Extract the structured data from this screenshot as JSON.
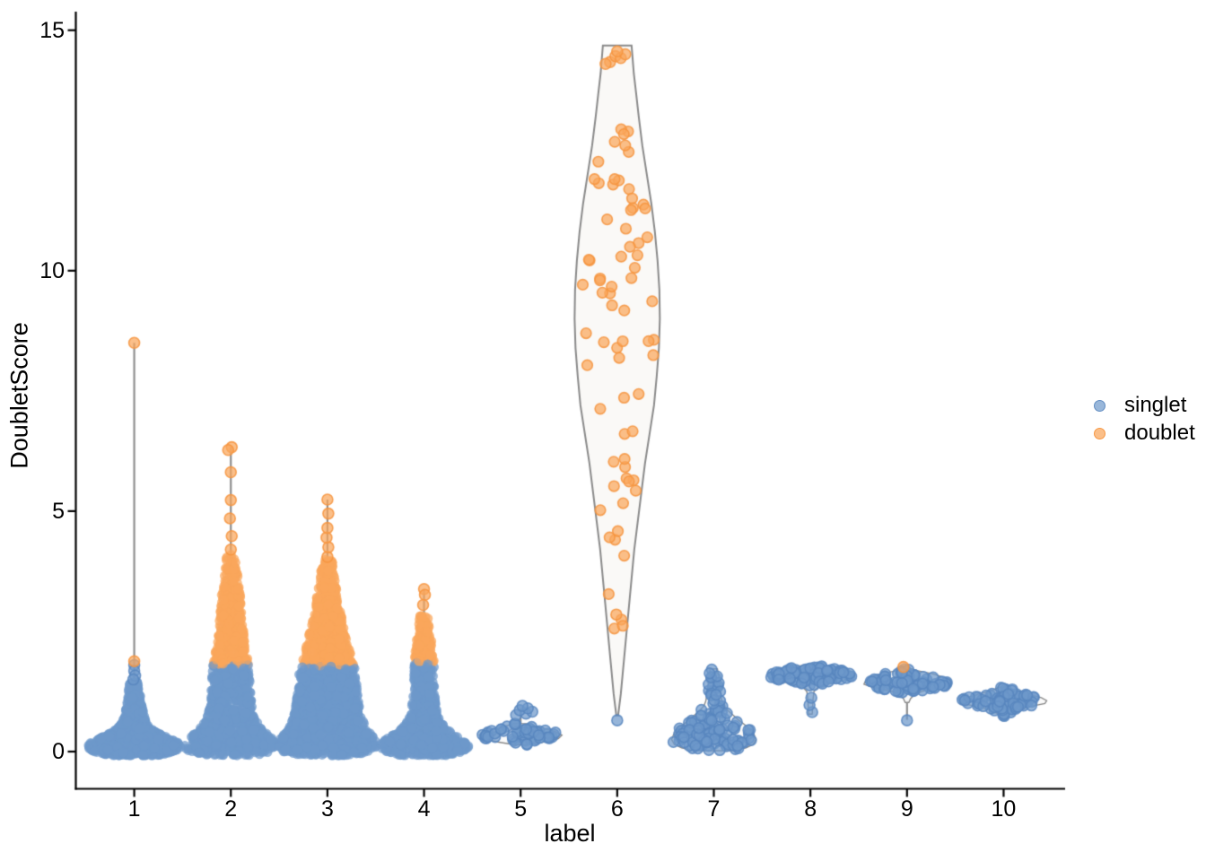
{
  "chart_data": {
    "type": "violin-scatter",
    "title": "",
    "xlabel": "label",
    "ylabel": "DoubletScore",
    "x_categories": [
      "1",
      "2",
      "3",
      "4",
      "5",
      "6",
      "7",
      "8",
      "9",
      "10"
    ],
    "y_ticks": [
      0,
      5,
      10,
      15
    ],
    "ylim": [
      -0.8,
      15.4
    ],
    "grid": false,
    "legend": {
      "position": "right",
      "entries": [
        {
          "label": "singlet",
          "fill": "rgba(110,152,202,0.70)",
          "stroke": "rgba(93,138,192,0.9)"
        },
        {
          "label": "doublet",
          "fill": "rgba(250,166,92,0.72)",
          "stroke": "rgba(246,148,62,0.9)"
        }
      ]
    },
    "point_colors": {
      "singlet_fill": "rgba(110,152,202,0.72)",
      "singlet_stroke": "rgba(88,134,190,0.85)",
      "doublet_fill": "rgba(250,166,92,0.72)",
      "doublet_stroke": "rgba(246,148,62,0.85)"
    },
    "violin_style": {
      "outline": "#8A8A8A",
      "fill": "#FAF9F7",
      "trace_fill": "#FAFAFA",
      "stem": "#8E8E8E"
    },
    "groups": [
      {
        "label": "1",
        "n": 1050,
        "dense": true,
        "doublet_above": null,
        "stem": [
          1.15,
          8.5
        ],
        "outline": "none",
        "profile": [
          [
            -0.08,
            26
          ],
          [
            0,
            47
          ],
          [
            0.1,
            52
          ],
          [
            0.2,
            48
          ],
          [
            0.3,
            36
          ],
          [
            0.4,
            25
          ],
          [
            0.5,
            18
          ],
          [
            0.6,
            14
          ],
          [
            0.75,
            11
          ],
          [
            0.9,
            9
          ],
          [
            1.1,
            7.5
          ],
          [
            1.3,
            6
          ],
          [
            1.45,
            5
          ]
        ],
        "extra_singlet": [
          [
            0,
            1.8
          ],
          [
            0,
            1.68
          ],
          [
            1,
            1.58
          ],
          [
            -1,
            1.5
          ]
        ],
        "extra_doublet": [
          [
            0,
            1.88
          ],
          [
            0,
            8.5
          ]
        ]
      },
      {
        "label": "2",
        "n": 1250,
        "dense": true,
        "doublet_above": 1.8,
        "stem": [
          1.4,
          6.33
        ],
        "outline": "none",
        "profile": [
          [
            -0.08,
            28
          ],
          [
            0,
            48
          ],
          [
            0.12,
            52
          ],
          [
            0.25,
            47
          ],
          [
            0.38,
            40
          ],
          [
            0.5,
            34
          ],
          [
            0.65,
            28
          ],
          [
            0.8,
            25
          ],
          [
            1.0,
            23
          ],
          [
            1.2,
            22
          ],
          [
            1.5,
            21
          ],
          [
            1.8,
            20
          ],
          [
            2.1,
            17
          ],
          [
            2.4,
            15
          ],
          [
            2.7,
            13
          ],
          [
            3.0,
            11.5
          ],
          [
            3.3,
            10
          ],
          [
            3.6,
            8
          ],
          [
            3.9,
            6.5
          ],
          [
            4.1,
            5
          ]
        ],
        "extra_singlet": [],
        "extra_doublet": [
          [
            0,
            4.2
          ],
          [
            1,
            4.48
          ],
          [
            -1,
            4.85
          ],
          [
            0,
            5.23
          ],
          [
            0,
            5.81
          ],
          [
            1,
            6.33
          ],
          [
            -3,
            6.27
          ]
        ]
      },
      {
        "label": "3",
        "n": 1700,
        "dense": true,
        "doublet_above": 1.78,
        "stem": [
          1.4,
          5.24
        ],
        "outline": "none",
        "profile": [
          [
            -0.08,
            30
          ],
          [
            0,
            50
          ],
          [
            0.12,
            56
          ],
          [
            0.25,
            53
          ],
          [
            0.4,
            47
          ],
          [
            0.55,
            42
          ],
          [
            0.7,
            38
          ],
          [
            0.9,
            36
          ],
          [
            1.1,
            34
          ],
          [
            1.4,
            33
          ],
          [
            1.7,
            31
          ],
          [
            2.0,
            26
          ],
          [
            2.3,
            22
          ],
          [
            2.6,
            18
          ],
          [
            2.9,
            15
          ],
          [
            3.2,
            12
          ],
          [
            3.5,
            9
          ],
          [
            3.8,
            7
          ],
          [
            4.0,
            5
          ]
        ],
        "extra_singlet": [],
        "extra_doublet": [
          [
            0,
            4.05
          ],
          [
            1,
            4.25
          ],
          [
            -1,
            4.45
          ],
          [
            0,
            4.65
          ],
          [
            1,
            4.95
          ],
          [
            0,
            5.24
          ]
        ]
      },
      {
        "label": "4",
        "n": 850,
        "dense": true,
        "doublet_above": 1.85,
        "stem": [
          1.4,
          3.38
        ],
        "outline": "none",
        "profile": [
          [
            -0.08,
            25
          ],
          [
            0,
            44
          ],
          [
            0.1,
            50
          ],
          [
            0.22,
            45
          ],
          [
            0.35,
            34
          ],
          [
            0.5,
            24
          ],
          [
            0.65,
            18
          ],
          [
            0.8,
            15
          ],
          [
            1.0,
            13
          ],
          [
            1.3,
            12
          ],
          [
            1.6,
            11.5
          ],
          [
            1.9,
            11
          ],
          [
            2.2,
            9
          ],
          [
            2.5,
            7
          ],
          [
            2.85,
            5
          ]
        ],
        "extra_singlet": [],
        "extra_doublet": [
          [
            0,
            3.38
          ],
          [
            1,
            3.26
          ],
          [
            -1,
            3.05
          ]
        ]
      },
      {
        "label": "5",
        "n": 55,
        "dense": false,
        "doublet_above": null,
        "stem": [
          0.5,
          0.9
        ],
        "outline": "trace",
        "profile": [
          [
            0.14,
            6
          ],
          [
            0.2,
            26
          ],
          [
            0.27,
            42
          ],
          [
            0.34,
            46
          ],
          [
            0.42,
            38
          ],
          [
            0.5,
            22
          ],
          [
            0.58,
            8
          ]
        ],
        "extra_singlet": [
          [
            -5,
            0.76
          ],
          [
            6,
            0.79
          ],
          [
            13,
            0.83
          ],
          [
            -1,
            0.86
          ],
          [
            8,
            0.9
          ],
          [
            2,
            0.95
          ]
        ],
        "extra_doublet": []
      },
      {
        "label": "6",
        "n": 70,
        "dense": false,
        "doublet_above": -1,
        "stem": null,
        "outline": "violin",
        "sample": [
          2.55,
          13.2
        ],
        "inset": 4,
        "profile": [
          [
            0.75,
            1
          ],
          [
            1.2,
            4
          ],
          [
            1.8,
            7
          ],
          [
            2.4,
            10
          ],
          [
            3.0,
            13
          ],
          [
            3.6,
            16
          ],
          [
            4.2,
            19
          ],
          [
            4.8,
            23
          ],
          [
            5.4,
            27
          ],
          [
            6.0,
            31
          ],
          [
            6.6,
            36
          ],
          [
            7.2,
            41
          ],
          [
            7.8,
            44
          ],
          [
            8.4,
            46.5
          ],
          [
            9.0,
            47.5
          ],
          [
            9.6,
            47
          ],
          [
            10.2,
            45
          ],
          [
            10.8,
            42
          ],
          [
            11.4,
            38
          ],
          [
            12.0,
            33
          ],
          [
            12.6,
            28
          ],
          [
            13.2,
            24
          ],
          [
            13.7,
            21
          ],
          [
            14.1,
            18.5
          ],
          [
            14.45,
            17
          ],
          [
            14.68,
            16
          ]
        ],
        "extra_singlet": [
          [
            0,
            0.65
          ]
        ],
        "extra_doublet": [
          [
            -8,
            14.34
          ],
          [
            -2,
            14.46
          ],
          [
            4,
            14.42
          ],
          [
            9,
            14.5
          ],
          [
            0,
            14.56
          ],
          [
            -13,
            14.3
          ],
          [
            -1,
            2.85
          ]
        ]
      },
      {
        "label": "7",
        "n": 135,
        "dense": false,
        "doublet_above": null,
        "stem": [
          1.0,
          1.68
        ],
        "outline": "trace",
        "profile": [
          [
            0.02,
            22
          ],
          [
            0.08,
            36
          ],
          [
            0.15,
            44
          ],
          [
            0.25,
            47
          ],
          [
            0.35,
            45
          ],
          [
            0.45,
            41
          ],
          [
            0.55,
            35
          ],
          [
            0.65,
            28
          ],
          [
            0.75,
            22
          ],
          [
            0.85,
            16
          ],
          [
            0.95,
            11
          ],
          [
            1.05,
            9
          ],
          [
            1.2,
            7.5
          ],
          [
            1.35,
            6.5
          ],
          [
            1.5,
            6
          ],
          [
            1.62,
            5
          ],
          [
            1.72,
            4
          ]
        ],
        "extra_singlet": [],
        "extra_doublet": []
      },
      {
        "label": "8",
        "n": 95,
        "dense": false,
        "doublet_above": null,
        "stem": [
          0.8,
          1.42
        ],
        "outline": "trace",
        "sample": [
          1.37,
          1.8
        ],
        "profile": [
          [
            0.78,
            2
          ],
          [
            0.95,
            2.5
          ],
          [
            1.1,
            3
          ],
          [
            1.25,
            4
          ],
          [
            1.35,
            9
          ],
          [
            1.43,
            26
          ],
          [
            1.5,
            41
          ],
          [
            1.57,
            48
          ],
          [
            1.64,
            46
          ],
          [
            1.7,
            36
          ],
          [
            1.76,
            18
          ],
          [
            1.8,
            6
          ]
        ],
        "extra_singlet": [
          [
            2,
            0.82
          ],
          [
            -1,
            0.97
          ],
          [
            1,
            1.12
          ]
        ],
        "extra_doublet": []
      },
      {
        "label": "9",
        "n": 82,
        "dense": false,
        "doublet_above": null,
        "stem": [
          0.66,
          1.28
        ],
        "outline": "trace",
        "sample": [
          1.2,
          1.72
        ],
        "profile": [
          [
            1.02,
            2
          ],
          [
            1.1,
            4
          ],
          [
            1.18,
            8
          ],
          [
            1.26,
            18
          ],
          [
            1.33,
            38
          ],
          [
            1.4,
            48
          ],
          [
            1.48,
            46
          ],
          [
            1.55,
            40
          ],
          [
            1.62,
            28
          ],
          [
            1.68,
            12
          ],
          [
            1.72,
            5
          ]
        ],
        "extra_singlet": [
          [
            0,
            0.65
          ]
        ],
        "extra_doublet": [
          [
            -4,
            1.76
          ]
        ]
      },
      {
        "label": "10",
        "n": 72,
        "dense": false,
        "doublet_above": null,
        "stem": null,
        "outline": "trace",
        "profile": [
          [
            0.7,
            2
          ],
          [
            0.78,
            6
          ],
          [
            0.86,
            14
          ],
          [
            0.94,
            30
          ],
          [
            1.0,
            46
          ],
          [
            1.06,
            48
          ],
          [
            1.12,
            42
          ],
          [
            1.2,
            26
          ],
          [
            1.28,
            12
          ],
          [
            1.34,
            5
          ]
        ],
        "extra_singlet": [],
        "extra_doublet": []
      }
    ]
  }
}
